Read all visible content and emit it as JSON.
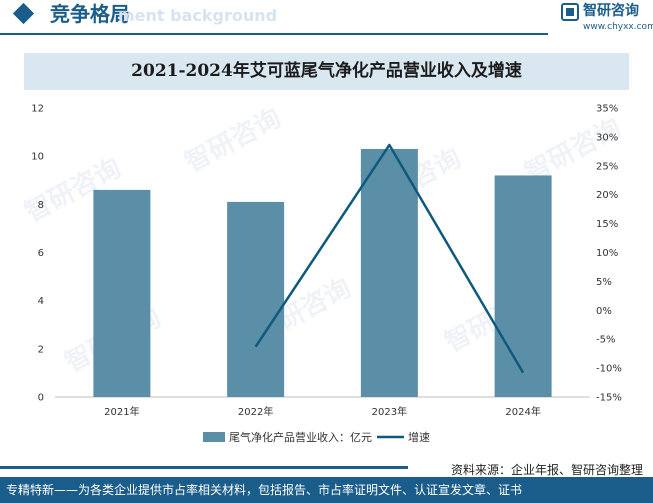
{
  "header": {
    "section_title": "竞争格局",
    "section_subtitle": "ment background",
    "logo_name": "智研咨询",
    "logo_url": "www.chyxx.com"
  },
  "watermark": {
    "text": "智研咨询"
  },
  "footer": {
    "source": "资料来源：企业年报、智研咨询整理",
    "bottom_text": "专精特新——为各类企业提供市占率相关材料，包括报告、市占率证明文件、认证宣发文章、证书"
  },
  "colors": {
    "bar": "#5b8fa8",
    "line": "#0e5a7c",
    "brand": "#1a5c8a"
  },
  "chart_data": {
    "type": "bar",
    "title": "2021-2024年艾可蓝尾气净化产品营业收入及增速",
    "categories": [
      "2021年",
      "2022年",
      "2023年",
      "2024年"
    ],
    "series": [
      {
        "name": "尾气净化产品营业收入：亿元",
        "type": "bar",
        "axis": "left",
        "values": [
          8.6,
          8.1,
          10.3,
          9.2
        ]
      },
      {
        "name": "增速",
        "type": "line",
        "axis": "right",
        "values": [
          null,
          -6.3,
          28.6,
          -10.8
        ]
      }
    ],
    "y_left": {
      "min": 0,
      "max": 12,
      "ticks": [
        "0",
        "2",
        "4",
        "6",
        "8",
        "10",
        "12"
      ]
    },
    "y_right": {
      "min": -15,
      "max": 35,
      "ticks": [
        "-15%",
        "-10%",
        "-5%",
        "0%",
        "5%",
        "10%",
        "15%",
        "20%",
        "25%",
        "30%",
        "35%"
      ]
    },
    "grid": false,
    "legend": "bottom"
  }
}
